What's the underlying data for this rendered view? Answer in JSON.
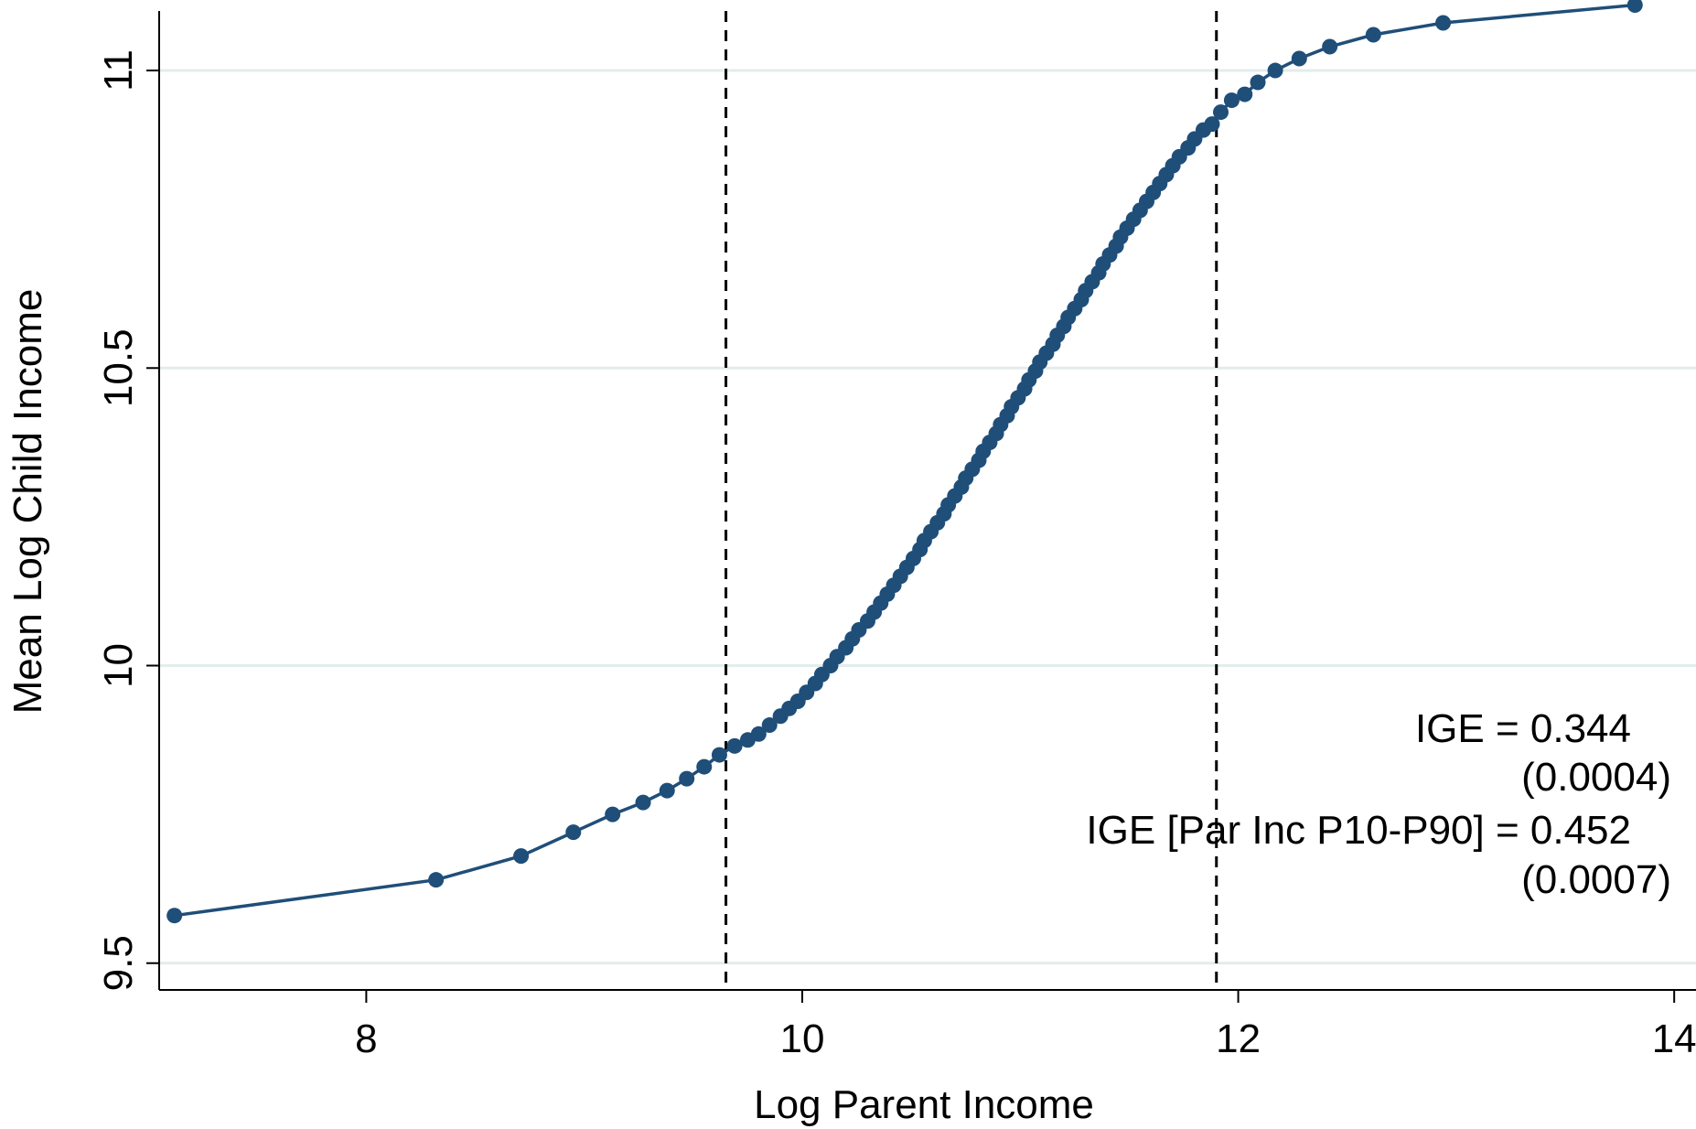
{
  "chart_data": {
    "type": "line",
    "xlabel": "Log Parent Income",
    "ylabel": "Mean Log Child Income",
    "xlim": [
      7.05,
      14.1
    ],
    "ylim": [
      9.455,
      11.1
    ],
    "x_ticks": [
      8,
      10,
      12,
      14
    ],
    "y_ticks": [
      9.5,
      10,
      10.5,
      11
    ],
    "x_tick_labels": [
      "8",
      "10",
      "12",
      "14"
    ],
    "y_tick_labels": [
      "9.5",
      "10",
      "10.5",
      "11"
    ],
    "grid": "horizontal",
    "reference_lines_x": [
      9.65,
      11.9
    ],
    "series": [
      {
        "color": "#1f4e79",
        "marker": "circle",
        "x": [
          7.12,
          8.32,
          8.71,
          8.95,
          9.13,
          9.27,
          9.38,
          9.47,
          9.55,
          9.62,
          9.69,
          9.75,
          9.8,
          9.85,
          9.9,
          9.94,
          9.98,
          10.02,
          10.06,
          10.09,
          10.13,
          10.16,
          10.2,
          10.23,
          10.26,
          10.3,
          10.33,
          10.36,
          10.39,
          10.42,
          10.45,
          10.48,
          10.51,
          10.54,
          10.56,
          10.59,
          10.62,
          10.65,
          10.67,
          10.7,
          10.73,
          10.75,
          10.78,
          10.81,
          10.83,
          10.86,
          10.89,
          10.91,
          10.94,
          10.96,
          10.99,
          11.02,
          11.04,
          11.07,
          11.09,
          11.12,
          11.15,
          11.17,
          11.2,
          11.22,
          11.25,
          11.28,
          11.3,
          11.33,
          11.36,
          11.38,
          11.41,
          11.44,
          11.46,
          11.49,
          11.52,
          11.55,
          11.58,
          11.61,
          11.64,
          11.67,
          11.7,
          11.73,
          11.77,
          11.8,
          11.84,
          11.88,
          11.92,
          11.97,
          12.03,
          12.09,
          12.17,
          12.28,
          12.42,
          12.62,
          12.94,
          13.82
        ],
        "y": [
          9.58,
          9.64,
          9.68,
          9.72,
          9.75,
          9.77,
          9.79,
          9.81,
          9.83,
          9.85,
          9.865,
          9.875,
          9.885,
          9.9,
          9.915,
          9.928,
          9.94,
          9.955,
          9.97,
          9.985,
          10.0,
          10.015,
          10.03,
          10.045,
          10.06,
          10.075,
          10.09,
          10.105,
          10.12,
          10.135,
          10.15,
          10.165,
          10.18,
          10.195,
          10.21,
          10.225,
          10.24,
          10.255,
          10.27,
          10.285,
          10.3,
          10.315,
          10.33,
          10.345,
          10.36,
          10.375,
          10.39,
          10.405,
          10.42,
          10.435,
          10.45,
          10.465,
          10.48,
          10.495,
          10.51,
          10.525,
          10.54,
          10.555,
          10.57,
          10.585,
          10.6,
          10.615,
          10.63,
          10.645,
          10.66,
          10.675,
          10.69,
          10.705,
          10.72,
          10.735,
          10.75,
          10.765,
          10.78,
          10.795,
          10.81,
          10.825,
          10.84,
          10.855,
          10.87,
          10.885,
          10.9,
          10.91,
          10.93,
          10.95,
          10.96,
          10.98,
          11.0,
          11.02,
          11.04,
          11.06,
          11.08,
          11.11
        ]
      }
    ],
    "annotations": [
      {
        "text": "IGE = 0.344"
      },
      {
        "text": "(0.0004)"
      },
      {
        "text": "IGE [Par Inc P10-P90] = 0.452"
      },
      {
        "text": "(0.0007)"
      }
    ]
  }
}
